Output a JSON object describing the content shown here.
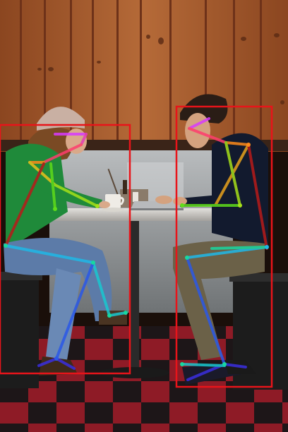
{
  "scene": {
    "colors": {
      "wood": "#a85a2e",
      "wood_dark": "#6e3219",
      "booth_metal": "#9ea1a3",
      "table_top": "#c9c7c4",
      "floor_red": "#9a1d28",
      "floor_dark": "#1d1618",
      "box": "#e8141a"
    },
    "people": [
      {
        "id": "woman",
        "label": "",
        "shirt_color": "#1f8a3a",
        "pants_color": "#5c7ba8",
        "hat_color": "#c9b0a3",
        "hair_color": "#7a4a24"
      },
      {
        "id": "man",
        "label": "",
        "shirt_color": "#121a2e",
        "pants_color": "#6b6148",
        "hair_color": "#2a1d16"
      }
    ],
    "objects": [
      "laptop",
      "coffee-cup",
      "condiment-tray",
      "table",
      "booth-bench"
    ]
  }
}
